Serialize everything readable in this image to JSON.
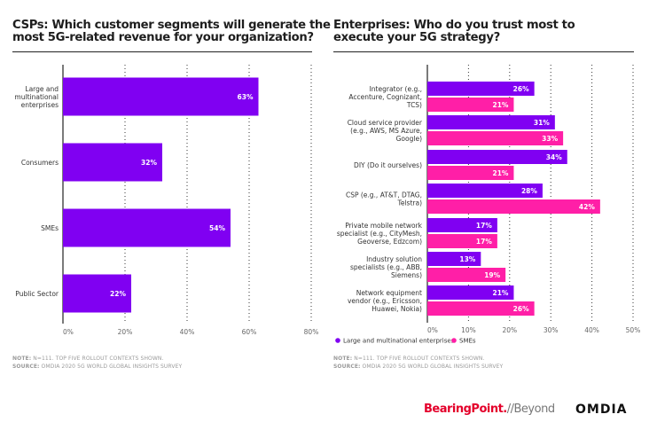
{
  "chart_data": [
    {
      "type": "bar",
      "orientation": "horizontal",
      "title": "CSPs: Which customer segments will generate the most 5G-related revenue for your organization?",
      "title_lines": [
        "CSPs: Which customer segments will generate the",
        "most 5G-related revenue for your organization?"
      ],
      "categories": [
        "Large and multinational enterprises",
        "Consumers",
        "SMEs",
        "Public Sector"
      ],
      "category_lines": [
        [
          "Large and",
          "multinational",
          "enterprises"
        ],
        [
          "Consumers"
        ],
        [
          "SMEs"
        ],
        [
          "Public Sector"
        ]
      ],
      "values": [
        63,
        32,
        54,
        22
      ],
      "value_labels": [
        "63%",
        "32%",
        "54%",
        "22%"
      ],
      "xlim": [
        0,
        80
      ],
      "xticks": [
        0,
        20,
        40,
        60,
        80
      ],
      "xtick_labels": [
        "0%",
        "20%",
        "40%",
        "60%",
        "80%"
      ],
      "grid": "dotted vertical",
      "color": "#8000f2",
      "xlabel": "",
      "ylabel": ""
    },
    {
      "type": "bar",
      "orientation": "horizontal",
      "title": "Enterprises: Who do you trust most to execute your 5G strategy?",
      "title_lines": [
        "Enterprises: Who do you trust most to",
        "execute your 5G strategy?"
      ],
      "categories": [
        "Integrator (e.g., Accenture, Cognizant, TCS)",
        "Cloud service provider (e.g., AWS, MS Azure, Google)",
        "DIY (Do it ourselves)",
        "CSP (e.g., AT&T, DTAG, Telstra)",
        "Private mobile network specialist (e.g., CityMesh, Geoverse, Edzcom)",
        "Industry solution specialists (e.g., ABB, Siemens)",
        "Network equipment vendor (e.g., Ericsson, Huawei, Nokia)"
      ],
      "category_lines": [
        [
          "Integrator (e.g.,",
          "Accenture, Cognizant,",
          "TCS)"
        ],
        [
          "Cloud service provider",
          "(e.g., AWS, MS Azure,",
          "Google)"
        ],
        [
          "DIY (Do it ourselves)"
        ],
        [
          "CSP (e.g., AT&T, DTAG,",
          "Telstra)"
        ],
        [
          "Private mobile network",
          "specialist (e.g., CityMesh,",
          "Geoverse, Edzcom)"
        ],
        [
          "Industry solution",
          "specialists (e.g., ABB,",
          "Siemens)"
        ],
        [
          "Network equipment",
          "vendor (e.g., Ericsson,",
          "Huawei, Nokia)"
        ]
      ],
      "series": [
        {
          "name": "Large and multinational enterprises",
          "color": "#8000f2",
          "values": [
            26,
            31,
            34,
            28,
            17,
            13,
            21
          ]
        },
        {
          "name": "SMEs",
          "color": "#ff1fa7",
          "values": [
            21,
            33,
            21,
            42,
            17,
            19,
            26
          ]
        }
      ],
      "xlim": [
        0,
        50
      ],
      "xticks": [
        0,
        10,
        20,
        30,
        40,
        50
      ],
      "xtick_labels": [
        "0%",
        "10%",
        "20%",
        "30%",
        "40%",
        "50%"
      ],
      "grid": "dotted vertical",
      "legend": "bottom-left",
      "xlabel": "",
      "ylabel": ""
    }
  ],
  "notes": {
    "left": {
      "note_label": "NOTE:",
      "note_text": " N=111. TOP FIVE ROLLOUT CONTEXTS SHOWN.",
      "source_label": "SOURCE:",
      "source_text": " OMDIA 2020 5G WORLD GLOBAL INSIGHTS SURVEY"
    },
    "right": {
      "note_label": "NOTE:",
      "note_text": " N=111. TOP FIVE ROLLOUT CONTEXTS SHOWN.",
      "source_label": "SOURCE:",
      "source_text": " OMDIA 2020 5G WORLD GLOBAL INSIGHTS SURVEY"
    }
  },
  "logos": {
    "bearingpoint": "BearingPoint.",
    "beyond": "//Beyond",
    "omdia": "OMDIA"
  }
}
